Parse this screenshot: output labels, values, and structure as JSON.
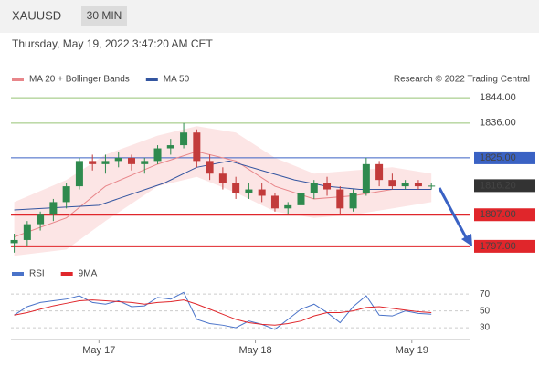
{
  "header": {
    "symbol": "XAUUSD",
    "timeframe": "30 MIN",
    "timestamp": "Thursday, May 19, 2022 3:47:20 AM CET"
  },
  "chart_data": [
    {
      "type": "candlestick",
      "source": "Research © 2022 Trading Central",
      "x": [
        -13,
        -11,
        -9,
        -7,
        -5,
        -3,
        -1,
        1,
        3,
        5,
        7,
        9,
        11,
        13,
        15,
        17,
        19,
        21,
        23,
        25,
        27,
        29,
        31,
        33,
        35,
        37,
        39,
        41,
        43,
        45,
        47,
        49,
        51
      ],
      "open": [
        1798,
        1799,
        1804,
        1807,
        1811,
        1816,
        1824,
        1823,
        1824,
        1825,
        1823,
        1824,
        1828,
        1829,
        1833,
        1824,
        1820,
        1817,
        1814,
        1815,
        1813,
        1809,
        1810,
        1814,
        1817,
        1815,
        1809,
        1814,
        1823,
        1818,
        1816,
        1817,
        1816
      ],
      "high": [
        1801,
        1805,
        1808,
        1812,
        1817,
        1825,
        1826,
        1826,
        1827,
        1826,
        1825,
        1829,
        1831,
        1836,
        1834,
        1826,
        1822,
        1819,
        1817,
        1817,
        1814,
        1811,
        1815,
        1818,
        1819,
        1816,
        1815,
        1825,
        1824,
        1820,
        1818,
        1818,
        1817
      ],
      "low": [
        1795,
        1797,
        1802,
        1805,
        1809,
        1815,
        1821,
        1820,
        1822,
        1821,
        1820,
        1823,
        1826,
        1828,
        1822,
        1818,
        1815,
        1812,
        1812,
        1811,
        1808,
        1807,
        1809,
        1812,
        1813,
        1807,
        1808,
        1813,
        1816,
        1815,
        1815,
        1815,
        1815
      ],
      "close": [
        1799,
        1804,
        1807,
        1811,
        1816,
        1824,
        1823,
        1824,
        1825,
        1823,
        1824,
        1828,
        1829,
        1833,
        1824,
        1820,
        1817,
        1814,
        1815,
        1813,
        1809,
        1810,
        1814,
        1817,
        1815,
        1809,
        1814,
        1823,
        1818,
        1816,
        1817,
        1816,
        1816.2
      ],
      "up_color": "#2f8a4e",
      "down_color": "#c23b3b",
      "band_color": "#fbdede",
      "series": [
        {
          "name": "MA 20 + Bollinger Bands",
          "color": "#e8868a",
          "x": [
            -13,
            -5,
            1,
            9,
            15,
            21,
            27,
            33,
            39,
            45,
            51
          ],
          "values": [
            1800,
            1806,
            1816,
            1823,
            1827,
            1824,
            1816,
            1812,
            1813,
            1815,
            1815
          ],
          "upper": [
            1811,
            1818,
            1826,
            1832,
            1835,
            1833,
            1825,
            1820,
            1821,
            1822,
            1820
          ],
          "lower": [
            1794,
            1796,
            1805,
            1816,
            1819,
            1814,
            1808,
            1806,
            1807,
            1809,
            1811
          ]
        },
        {
          "name": "MA 50",
          "color": "#3355a0",
          "x": [
            -13,
            0,
            10,
            15,
            20,
            25,
            30,
            35,
            40,
            45,
            51
          ],
          "values": [
            1808.5,
            1810,
            1817,
            1822,
            1824,
            1821,
            1818,
            1816,
            1815,
            1815,
            1815
          ]
        }
      ],
      "levels": [
        {
          "value": 1844,
          "label": "1844.00",
          "color": "#6aaa3a",
          "boxed": false
        },
        {
          "value": 1836,
          "label": "1836.00",
          "color": "#6aaa3a",
          "boxed": false
        },
        {
          "value": 1825,
          "label": "1825.00",
          "color": "#3a62c4",
          "boxed": true
        },
        {
          "value": 1807,
          "label": "1807.00",
          "color": "#e0262b",
          "boxed": true
        },
        {
          "value": 1797,
          "label": "1797.00",
          "color": "#e0262b",
          "boxed": true
        }
      ],
      "last_price": {
        "value": 1816.2,
        "label": "1816.20",
        "color": "#333333"
      },
      "xlim": [
        -13.5,
        57
      ],
      "ylim": [
        1793.5,
        1847.5
      ]
    },
    {
      "type": "line",
      "x": [
        -13,
        -11,
        -9,
        -7,
        -5,
        -3,
        -1,
        1,
        3,
        5,
        7,
        9,
        11,
        13,
        15,
        17,
        19,
        21,
        23,
        25,
        27,
        29,
        31,
        33,
        35,
        37,
        39,
        41,
        43,
        45,
        47,
        49,
        51
      ],
      "series": [
        {
          "name": "RSI",
          "color": "#4a73c9",
          "values": [
            45,
            55,
            60,
            62,
            64,
            68,
            60,
            58,
            62,
            55,
            56,
            66,
            64,
            72,
            40,
            35,
            33,
            30,
            38,
            34,
            28,
            40,
            52,
            58,
            48,
            36,
            55,
            68,
            45,
            44,
            50,
            47,
            46
          ]
        },
        {
          "name": "9MA",
          "color": "#e0262b",
          "values": [
            45,
            48,
            52,
            56,
            59,
            62,
            63,
            62,
            61,
            60,
            58,
            60,
            61,
            63,
            58,
            52,
            46,
            40,
            36,
            34,
            33,
            35,
            38,
            44,
            48,
            48,
            50,
            54,
            55,
            53,
            51,
            49,
            48
          ]
        }
      ],
      "xlim": [
        -13.5,
        57
      ],
      "ylim": [
        16,
        81
      ],
      "yticks": [
        70,
        50,
        30
      ],
      "xticks": [
        {
          "value": 0,
          "label": "May 17"
        },
        {
          "value": 24,
          "label": "May 18"
        },
        {
          "value": 48,
          "label": "May 19"
        }
      ],
      "grid": true
    }
  ]
}
